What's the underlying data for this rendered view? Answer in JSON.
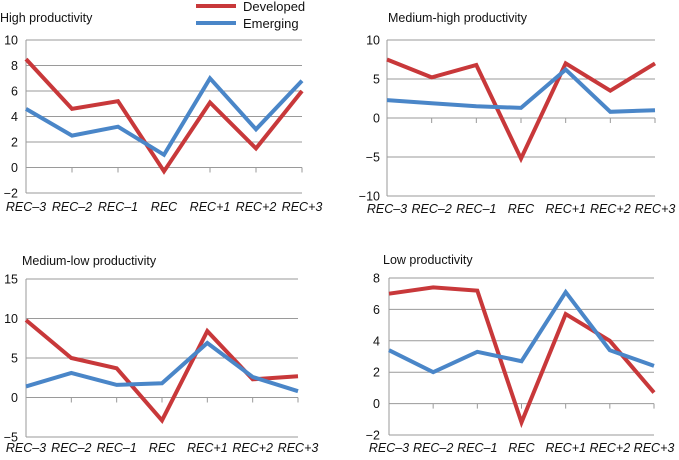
{
  "legend": {
    "position": "top-center",
    "items": [
      {
        "label": "Developed",
        "color": "#c8383a"
      },
      {
        "label": "Emerging",
        "color": "#4a86c8"
      }
    ]
  },
  "chart_data": [
    {
      "type": "line",
      "title": "High productivity",
      "categories": [
        "REC–3",
        "REC–2",
        "REC–1",
        "REC",
        "REC+1",
        "REC+2",
        "REC+3"
      ],
      "ylim": [
        -2,
        10
      ],
      "yticks": [
        -2,
        0,
        2,
        4,
        6,
        8,
        10
      ],
      "grid": true,
      "series": [
        {
          "name": "Developed",
          "values": [
            8.5,
            4.6,
            5.2,
            -0.3,
            5.1,
            1.5,
            6.0
          ]
        },
        {
          "name": "Emerging",
          "values": [
            4.6,
            2.5,
            3.2,
            1.0,
            7.0,
            3.0,
            6.8
          ]
        }
      ]
    },
    {
      "type": "line",
      "title": "Medium-high productivity",
      "categories": [
        "REC–3",
        "REC–2",
        "REC–1",
        "REC",
        "REC+1",
        "REC+2",
        "REC+3"
      ],
      "ylim": [
        -10,
        10
      ],
      "yticks": [
        -10,
        -5,
        0,
        5,
        10
      ],
      "grid": true,
      "series": [
        {
          "name": "Developed",
          "values": [
            7.5,
            5.2,
            6.8,
            -5.2,
            7.0,
            3.5,
            7.0
          ]
        },
        {
          "name": "Emerging",
          "values": [
            2.3,
            1.9,
            1.5,
            1.3,
            6.2,
            0.8,
            1.0
          ]
        }
      ]
    },
    {
      "type": "line",
      "title": "Medium-low productivity",
      "categories": [
        "REC–3",
        "REC–2",
        "REC–1",
        "REC",
        "REC+1",
        "REC+2",
        "REC+3"
      ],
      "ylim": [
        -5,
        15
      ],
      "yticks": [
        -5,
        0,
        5,
        10,
        15
      ],
      "grid": true,
      "series": [
        {
          "name": "Developed",
          "values": [
            9.8,
            5.0,
            3.7,
            -2.9,
            8.4,
            2.3,
            2.7
          ]
        },
        {
          "name": "Emerging",
          "values": [
            1.4,
            3.1,
            1.6,
            1.8,
            6.9,
            2.6,
            0.8
          ]
        }
      ]
    },
    {
      "type": "line",
      "title": "Low productivity",
      "categories": [
        "REC–3",
        "REC–2",
        "REC–1",
        "REC",
        "REC+1",
        "REC+2",
        "REC+3"
      ],
      "ylim": [
        -2,
        8
      ],
      "yticks": [
        -2,
        0,
        2,
        4,
        6,
        8
      ],
      "grid": true,
      "series": [
        {
          "name": "Developed",
          "values": [
            7.0,
            7.4,
            7.2,
            -1.2,
            5.7,
            4.0,
            0.7
          ]
        },
        {
          "name": "Emerging",
          "values": [
            3.4,
            2.0,
            3.3,
            2.7,
            7.1,
            3.4,
            2.4
          ]
        }
      ]
    }
  ]
}
